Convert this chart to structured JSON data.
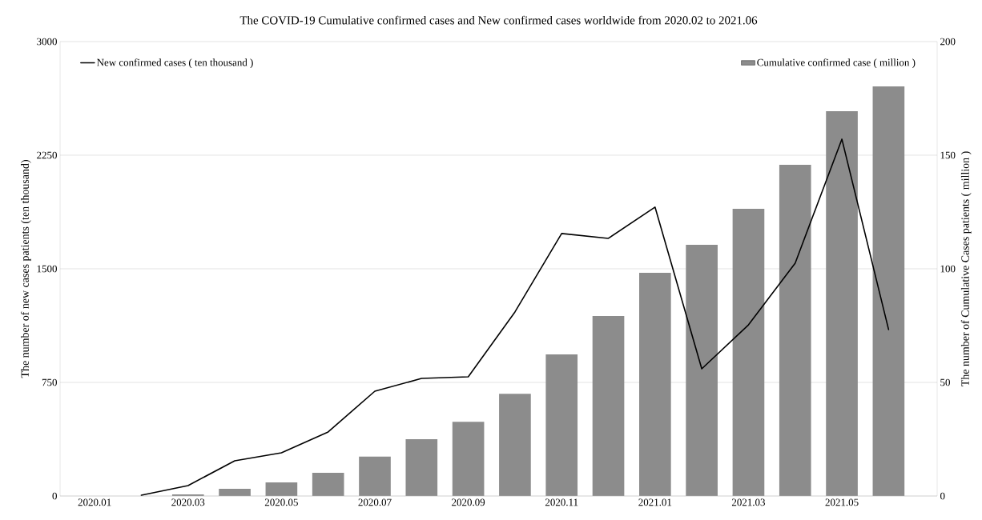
{
  "chart_data": {
    "type": "bar",
    "title": "The COVID-19 Cumulative confirmed cases and New confirmed cases worldwide from 2020.02 to 2021.06",
    "ylabel": "The number of new cases patients (ten thousand)",
    "y2label": "The number of Cumulative Cases patients ( million )",
    "categories": [
      "2020.01",
      null,
      "2020.03",
      null,
      "2020.05",
      null,
      "2020.07",
      null,
      "2020.09",
      null,
      "2020.11",
      null,
      "2021.01",
      null,
      "2021.03",
      null,
      "2021.05",
      null
    ],
    "series": [
      {
        "name": "New confirmed cases ( ten thousand )",
        "type": "line",
        "color": "#000000",
        "values": [
          null,
          5,
          69,
          232,
          285,
          423,
          692,
          776,
          787,
          1215,
          1733,
          1701,
          1907,
          840,
          1130,
          1537,
          2356,
          1099
        ]
      },
      {
        "name": "Cumulative confirmed case ( million )",
        "axis": "y2",
        "color": "#8c8c8c",
        "values": [
          0,
          null,
          0.7,
          3.2,
          6.0,
          10.2,
          17.3,
          25.0,
          32.7,
          45.0,
          62.3,
          79.2,
          98.2,
          110.6,
          126.4,
          145.8,
          169.4,
          180.3
        ]
      }
    ],
    "ylim": [
      0,
      3000
    ],
    "yticks": [
      0,
      750,
      1500,
      2250,
      3000
    ],
    "y2lim": [
      0,
      200
    ],
    "y2ticks": [
      0,
      50,
      100,
      150,
      200
    ],
    "grid": "y",
    "legend": "top"
  }
}
